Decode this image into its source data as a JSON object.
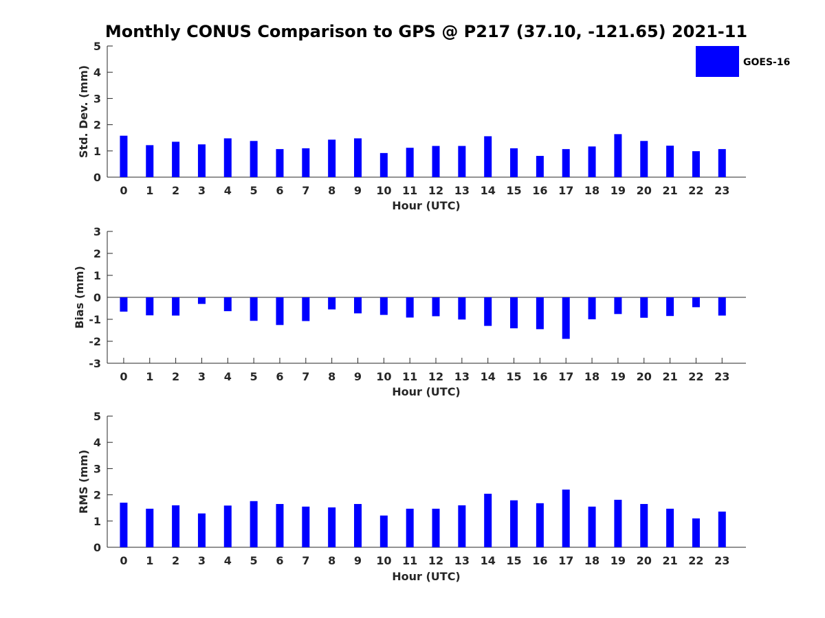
{
  "title": "Monthly CONUS Comparison to GPS @ P217 (37.10, -121.65) 2021-11",
  "legend": {
    "label": "GOES-16",
    "color": "#0000ff",
    "placement": "top-right"
  },
  "chart_data": [
    {
      "type": "bar",
      "name": "std-dev",
      "xlabel": "Hour (UTC)",
      "ylabel": "Std. Dev. (mm)",
      "ylim": [
        0,
        5
      ],
      "yticks": [
        "0",
        "1",
        "2",
        "3",
        "4",
        "5"
      ],
      "categories": [
        "0",
        "1",
        "2",
        "3",
        "4",
        "5",
        "6",
        "7",
        "8",
        "9",
        "10",
        "11",
        "12",
        "13",
        "14",
        "15",
        "16",
        "17",
        "18",
        "19",
        "20",
        "21",
        "22",
        "23"
      ],
      "series": [
        {
          "name": "GOES-16",
          "color": "#0000ff",
          "values": [
            1.58,
            1.22,
            1.35,
            1.25,
            1.48,
            1.38,
            1.07,
            1.1,
            1.43,
            1.48,
            0.92,
            1.12,
            1.19,
            1.19,
            1.56,
            1.1,
            0.81,
            1.07,
            1.17,
            1.64,
            1.38,
            1.2,
            0.99,
            1.07
          ]
        }
      ]
    },
    {
      "type": "bar",
      "name": "bias",
      "xlabel": "Hour (UTC)",
      "ylabel": "Bias (mm)",
      "ylim": [
        -3,
        3
      ],
      "yticks": [
        "-3",
        "-2",
        "-1",
        "0",
        "1",
        "2",
        "3"
      ],
      "categories": [
        "0",
        "1",
        "2",
        "3",
        "4",
        "5",
        "6",
        "7",
        "8",
        "9",
        "10",
        "11",
        "12",
        "13",
        "14",
        "15",
        "16",
        "17",
        "18",
        "19",
        "20",
        "21",
        "22",
        "23"
      ],
      "series": [
        {
          "name": "GOES-16",
          "color": "#0000ff",
          "values": [
            -0.65,
            -0.82,
            -0.83,
            -0.3,
            -0.63,
            -1.07,
            -1.26,
            -1.08,
            -0.55,
            -0.73,
            -0.8,
            -0.92,
            -0.86,
            -1.01,
            -1.3,
            -1.41,
            -1.45,
            -1.89,
            -1.0,
            -0.76,
            -0.93,
            -0.85,
            -0.45,
            -0.83
          ]
        }
      ]
    },
    {
      "type": "bar",
      "name": "rms",
      "xlabel": "Hour (UTC)",
      "ylabel": "RMS (mm)",
      "ylim": [
        0,
        5
      ],
      "yticks": [
        "0",
        "1",
        "2",
        "3",
        "4",
        "5"
      ],
      "categories": [
        "0",
        "1",
        "2",
        "3",
        "4",
        "5",
        "6",
        "7",
        "8",
        "9",
        "10",
        "11",
        "12",
        "13",
        "14",
        "15",
        "16",
        "17",
        "18",
        "19",
        "20",
        "21",
        "22",
        "23"
      ],
      "series": [
        {
          "name": "GOES-16",
          "color": "#0000ff",
          "values": [
            1.7,
            1.47,
            1.6,
            1.29,
            1.59,
            1.76,
            1.65,
            1.55,
            1.52,
            1.65,
            1.21,
            1.47,
            1.47,
            1.6,
            2.04,
            1.79,
            1.68,
            2.2,
            1.55,
            1.81,
            1.65,
            1.47,
            1.1,
            1.36
          ]
        }
      ]
    }
  ]
}
